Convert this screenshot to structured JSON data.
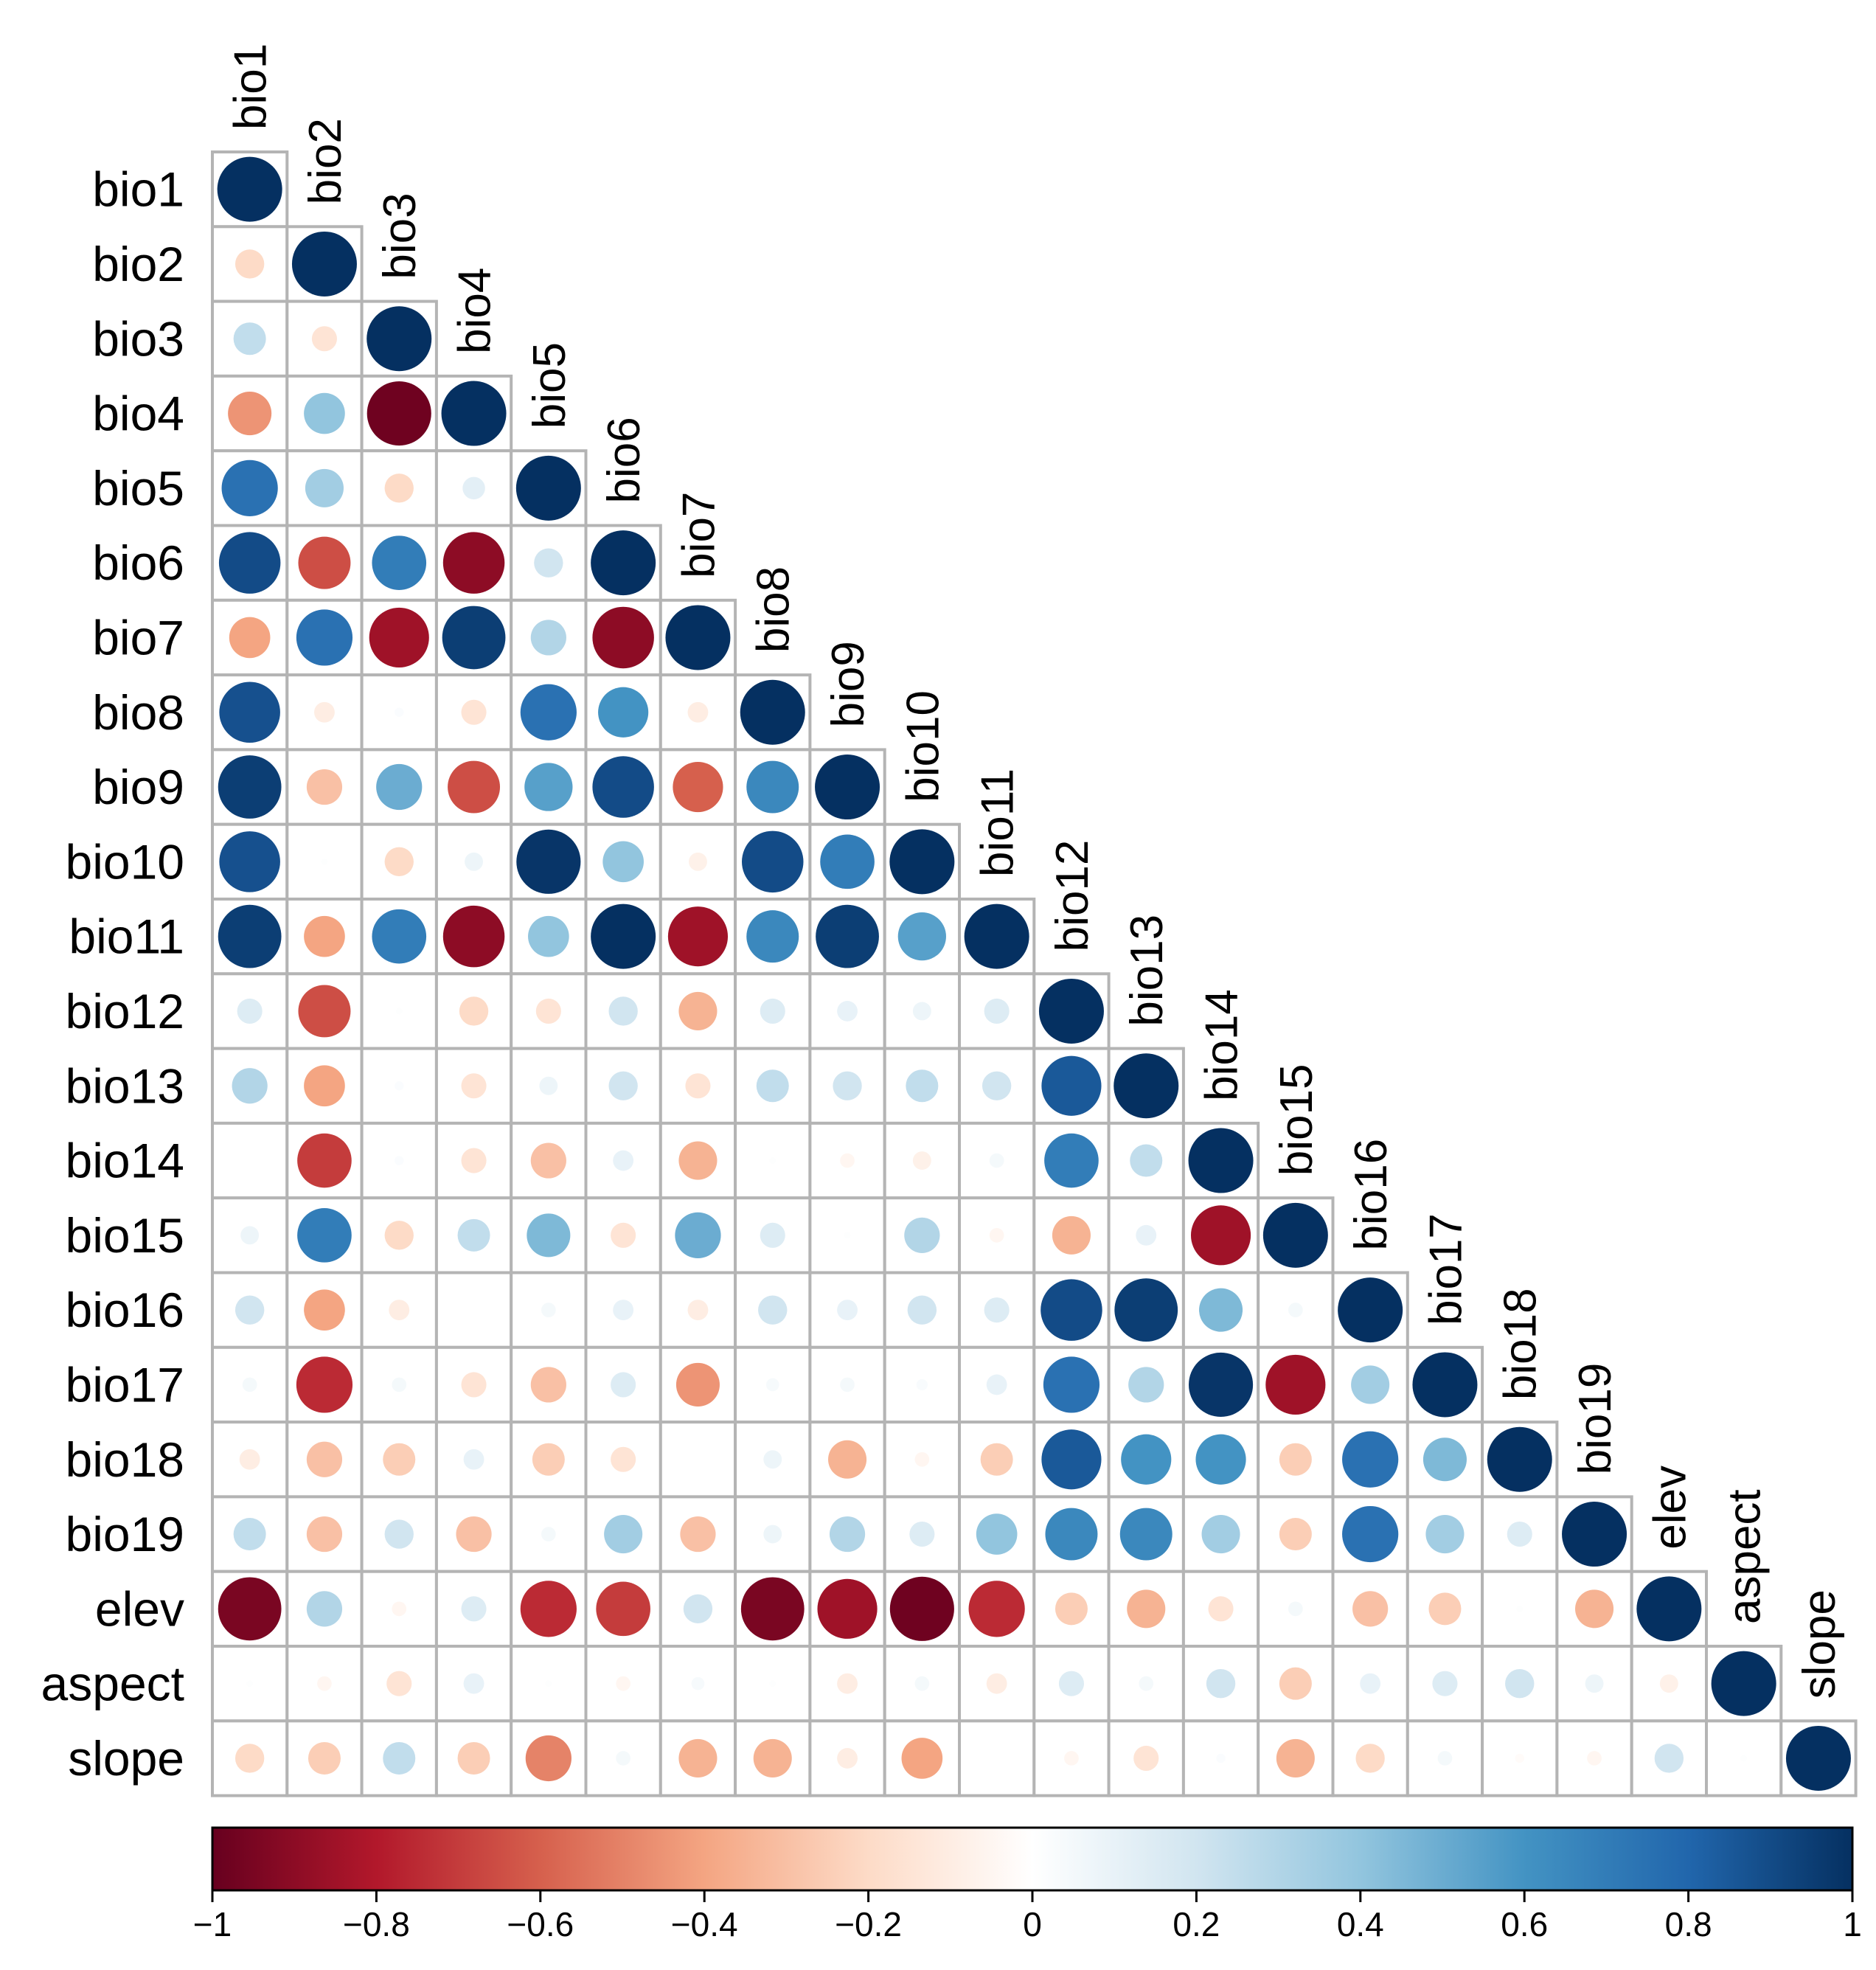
{
  "chart_data": {
    "type": "heatmap",
    "subtype": "correlation-matrix-lower-triangle-circles",
    "title": "",
    "variables": [
      "bio1",
      "bio2",
      "bio3",
      "bio4",
      "bio5",
      "bio6",
      "bio7",
      "bio8",
      "bio9",
      "bio10",
      "bio11",
      "bio12",
      "bio13",
      "bio14",
      "bio15",
      "bio16",
      "bio17",
      "bio18",
      "bio19",
      "elev",
      "aspect",
      "slope"
    ],
    "values": [
      [
        1
      ],
      [
        -0.2,
        1
      ],
      [
        0.25,
        -0.15,
        1
      ],
      [
        -0.45,
        0.4,
        -0.98,
        1
      ],
      [
        0.75,
        0.35,
        -0.2,
        0.12,
        1
      ],
      [
        0.9,
        -0.65,
        0.7,
        -0.9,
        0.2,
        1
      ],
      [
        -0.4,
        0.75,
        -0.85,
        0.95,
        0.3,
        -0.9,
        1
      ],
      [
        0.88,
        -0.1,
        0.02,
        -0.15,
        0.75,
        0.6,
        -0.1,
        1
      ],
      [
        0.95,
        -0.3,
        0.5,
        -0.65,
        0.55,
        0.9,
        -0.6,
        0.65,
        1
      ],
      [
        0.88,
        0.01,
        -0.2,
        0.08,
        0.98,
        0.4,
        -0.08,
        0.9,
        0.7,
        1
      ],
      [
        0.95,
        -0.4,
        0.7,
        -0.9,
        0.4,
        1.0,
        -0.85,
        0.65,
        0.95,
        0.55,
        1
      ],
      [
        0.15,
        -0.65,
        0.01,
        -0.2,
        -0.15,
        0.2,
        -0.35,
        0.15,
        0.1,
        0.08,
        0.15,
        1
      ],
      [
        0.3,
        -0.4,
        0.02,
        -0.15,
        0.08,
        0.2,
        -0.15,
        0.25,
        0.2,
        0.25,
        0.2,
        0.85,
        1
      ],
      [
        0.0,
        -0.7,
        0.02,
        -0.15,
        -0.3,
        0.1,
        -0.35,
        0.01,
        -0.05,
        -0.08,
        0.05,
        0.7,
        0.25,
        1
      ],
      [
        0.08,
        0.7,
        -0.2,
        0.25,
        0.45,
        -0.15,
        0.5,
        0.15,
        0.01,
        0.3,
        -0.05,
        -0.35,
        0.1,
        -0.85,
        1
      ],
      [
        0.2,
        -0.4,
        -0.1,
        0.0,
        0.05,
        0.1,
        -0.1,
        0.2,
        0.1,
        0.2,
        0.15,
        0.9,
        0.95,
        0.45,
        0.05,
        1
      ],
      [
        0.05,
        -0.75,
        0.05,
        -0.15,
        -0.3,
        0.15,
        -0.45,
        0.04,
        0.05,
        0.03,
        0.1,
        0.75,
        0.3,
        0.98,
        -0.85,
        0.35,
        1
      ],
      [
        -0.1,
        -0.3,
        -0.25,
        0.1,
        -0.25,
        -0.15,
        0.0,
        0.08,
        -0.35,
        -0.05,
        -0.25,
        0.85,
        0.6,
        0.6,
        -0.25,
        0.75,
        0.45,
        1
      ],
      [
        0.25,
        -0.3,
        0.2,
        -0.3,
        0.05,
        0.35,
        -0.3,
        0.08,
        0.3,
        0.15,
        0.4,
        0.65,
        0.65,
        0.35,
        -0.25,
        0.75,
        0.35,
        0.15,
        1
      ],
      [
        -0.95,
        0.3,
        -0.05,
        0.15,
        -0.75,
        -0.7,
        0.2,
        -0.95,
        -0.85,
        -0.98,
        -0.75,
        -0.25,
        -0.35,
        -0.15,
        0.05,
        -0.3,
        -0.25,
        0.01,
        -0.35,
        1
      ],
      [
        0.01,
        -0.05,
        -0.15,
        0.1,
        0.01,
        -0.05,
        0.04,
        0.01,
        -0.1,
        0.05,
        -0.1,
        0.15,
        0.05,
        0.2,
        -0.25,
        0.1,
        0.15,
        0.2,
        0.08,
        -0.08,
        1
      ],
      [
        -0.2,
        -0.25,
        0.25,
        -0.25,
        -0.5,
        0.05,
        -0.35,
        -0.35,
        -0.1,
        -0.4,
        0.0,
        -0.05,
        -0.15,
        0.02,
        -0.35,
        -0.2,
        0.05,
        -0.02,
        -0.05,
        0.2,
        0.01,
        1
      ]
    ],
    "colorbar": {
      "range": [
        -1,
        1
      ],
      "tick_labels": [
        "−1",
        "−0.8",
        "−0.6",
        "−0.4",
        "−0.2",
        "0",
        "0.2",
        "0.4",
        "0.6",
        "0.8",
        "1"
      ],
      "tick_values": [
        -1,
        -0.8,
        -0.6,
        -0.4,
        -0.2,
        0,
        0.2,
        0.4,
        0.6,
        0.8,
        1
      ],
      "colors": [
        "#67001F",
        "#B2182B",
        "#D6604D",
        "#F4A582",
        "#FDDBC7",
        "#FFFFFF",
        "#D1E5F0",
        "#92C5DE",
        "#4393C3",
        "#2166AC",
        "#053061"
      ],
      "placement": "bottom"
    },
    "legend": "colorbar-bottom",
    "grid": true
  }
}
